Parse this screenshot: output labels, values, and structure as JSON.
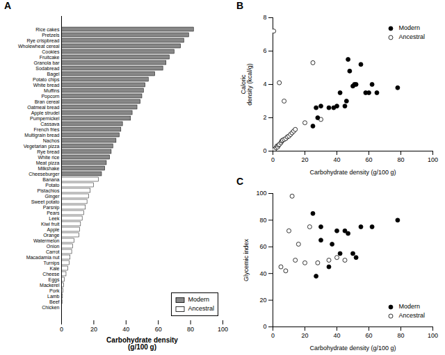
{
  "chart_data": [
    {
      "type": "bar",
      "title": "A",
      "orientation": "horizontal",
      "xlabel": "Carbohydrate density\n(g/100 g)",
      "categories": [
        "Rice cakes",
        "Pretzels",
        "Rye crispbread",
        "Wholewheat cereal",
        "Cookies",
        "Fruitcake",
        "Granola bar",
        "Sodabread",
        "Bagel",
        "Potato chips",
        "White bread",
        "Muffins",
        "Popcorn",
        "Bran cereal",
        "Oatmeal bread",
        "Apple strudel",
        "Pumpernickel",
        "Cassava",
        "French fries",
        "Multigrain bread",
        "Nachos",
        "Vegetarian pizza",
        "Rye bread",
        "White rice",
        "Meat pizza",
        "Milkshake",
        "Cheeseburger",
        "Banana",
        "Potato",
        "Pistachios",
        "Ginger",
        "Sweet potato",
        "Parsnip",
        "Pears",
        "Leek",
        "Kiwi fruit",
        "Apple",
        "Orange",
        "Watermelon",
        "Onion",
        "Carrot",
        "Macadamia nut",
        "Turnips",
        "Kale",
        "Cheese",
        "Eggs",
        "Mackerel",
        "Pork",
        "Lamb",
        "Beef",
        "Chicken"
      ],
      "series": [
        {
          "name": "Modern",
          "color": "#888888",
          "values": [
            82,
            79,
            76,
            74,
            70,
            67,
            65,
            63,
            58,
            54,
            52,
            51,
            50,
            49,
            47,
            44,
            43,
            38,
            37,
            36,
            34,
            32,
            31,
            30,
            28,
            27,
            25,
            null,
            null,
            null,
            null,
            null,
            null,
            null,
            null,
            null,
            null,
            null,
            null,
            null,
            null,
            null,
            null,
            null,
            null,
            null,
            null,
            null,
            null,
            null,
            null
          ]
        },
        {
          "name": "Ancestral",
          "color": "white",
          "values": [
            null,
            null,
            null,
            null,
            null,
            null,
            null,
            null,
            null,
            null,
            null,
            null,
            null,
            null,
            null,
            null,
            null,
            null,
            null,
            null,
            null,
            null,
            null,
            null,
            null,
            null,
            null,
            23,
            20,
            18,
            17,
            16,
            15,
            14,
            13,
            12,
            11.5,
            11,
            8,
            7,
            6.5,
            5.5,
            5,
            4,
            3,
            2,
            1.5,
            1,
            0.8,
            0.5,
            0.3
          ]
        }
      ],
      "xlim": [
        0,
        100
      ],
      "xticks": [
        0,
        20,
        40,
        60,
        80,
        100
      ],
      "legend": "lower right"
    },
    {
      "type": "scatter",
      "title": "B",
      "xlabel": "Carbohydrate density (g/100 g)",
      "ylabel": "Caloric\ndensity (kcal/g)",
      "series": [
        {
          "name": "Modern",
          "color": "black",
          "marker": "circle",
          "x": [
            27,
            30,
            25,
            28,
            35,
            38,
            40,
            42,
            45,
            46,
            47,
            48,
            50,
            51,
            52,
            55,
            58,
            60,
            62,
            65,
            78
          ],
          "values": [
            2.6,
            2.7,
            1.5,
            2.0,
            2.6,
            2.6,
            2.7,
            3.5,
            2.7,
            3.0,
            5.5,
            4.8,
            3.9,
            4.0,
            4.0,
            5.2,
            3.5,
            3.5,
            4.0,
            3.5,
            3.8
          ]
        },
        {
          "name": "Ancestral",
          "color": "white",
          "marker": "circle",
          "x": [
            1,
            2,
            2.5,
            3,
            3.5,
            4,
            5,
            5.5,
            6,
            7,
            8,
            9,
            10,
            11,
            12,
            13,
            14,
            20,
            25,
            30,
            0.5,
            4,
            7
          ],
          "values": [
            0.1,
            0.2,
            0.3,
            0.25,
            0.35,
            0.4,
            0.5,
            0.6,
            0.65,
            0.7,
            0.75,
            0.85,
            0.9,
            1.0,
            1.1,
            1.2,
            1.3,
            1.7,
            5.3,
            1.9,
            7.2,
            4.1,
            3.0
          ]
        }
      ],
      "xlim": [
        0,
        100
      ],
      "xticks": [
        0,
        20,
        40,
        60,
        80,
        100
      ],
      "ylim": [
        0,
        8
      ],
      "yticks": [
        0,
        2,
        4,
        6,
        8
      ],
      "legend": "upper right"
    },
    {
      "type": "scatter",
      "title": "C",
      "xlabel": "Carbohydrate density (g/100 g)",
      "ylabel": "Glycemic index",
      "series": [
        {
          "name": "Modern",
          "color": "black",
          "marker": "circle",
          "x": [
            25,
            27,
            30,
            30,
            35,
            37,
            40,
            42,
            45,
            47,
            50,
            52,
            55,
            62,
            78
          ],
          "values": [
            85,
            38,
            75,
            65,
            45,
            62,
            72,
            55,
            72,
            70,
            55,
            52,
            75,
            75,
            80
          ]
        },
        {
          "name": "Ancestral",
          "color": "white",
          "marker": "circle",
          "x": [
            5,
            8,
            10,
            12,
            14,
            16,
            20,
            23,
            28,
            35,
            40,
            45
          ],
          "values": [
            45,
            42,
            72,
            98,
            50,
            62,
            48,
            75,
            48,
            50,
            52,
            50
          ]
        }
      ],
      "xlim": [
        0,
        100
      ],
      "xticks": [
        0,
        20,
        40,
        60,
        80,
        100
      ],
      "ylim": [
        0,
        100
      ],
      "yticks": [
        0,
        20,
        40,
        60,
        80,
        100
      ],
      "legend": "lower right"
    }
  ]
}
